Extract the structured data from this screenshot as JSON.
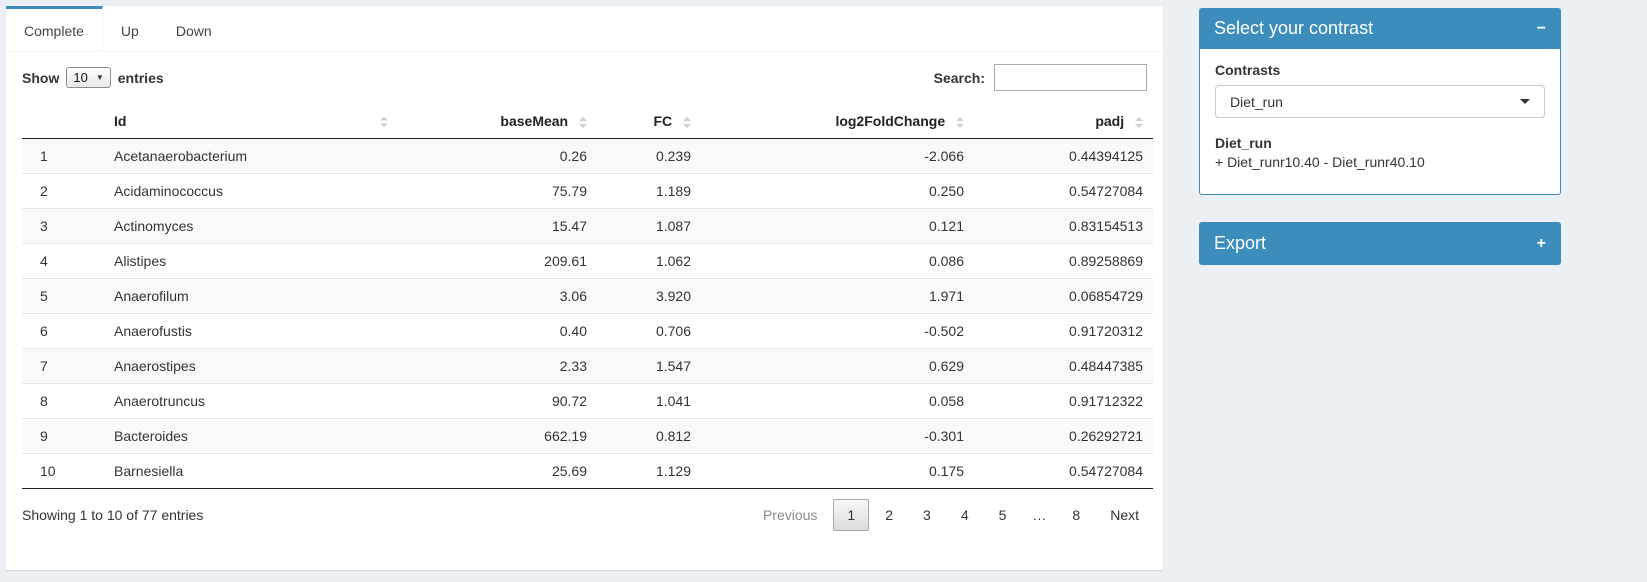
{
  "tabs": [
    {
      "label": "Complete",
      "active": true
    },
    {
      "label": "Up",
      "active": false
    },
    {
      "label": "Down",
      "active": false
    }
  ],
  "controls": {
    "show_label": "Show",
    "entries_value": "10",
    "entries_label": "entries",
    "search_label": "Search:",
    "search_value": ""
  },
  "table": {
    "headers": [
      {
        "label": "",
        "sortable": false
      },
      {
        "label": "Id",
        "sortable": true
      },
      {
        "label": "baseMean",
        "sortable": true
      },
      {
        "label": "FC",
        "sortable": true
      },
      {
        "label": "log2FoldChange",
        "sortable": true
      },
      {
        "label": "padj",
        "sortable": true
      }
    ],
    "rows": [
      [
        "1",
        "Acetanaerobacterium",
        "0.26",
        "0.239",
        "-2.066",
        "0.44394125"
      ],
      [
        "2",
        "Acidaminococcus",
        "75.79",
        "1.189",
        "0.250",
        "0.54727084"
      ],
      [
        "3",
        "Actinomyces",
        "15.47",
        "1.087",
        "0.121",
        "0.83154513"
      ],
      [
        "4",
        "Alistipes",
        "209.61",
        "1.062",
        "0.086",
        "0.89258869"
      ],
      [
        "5",
        "Anaerofilum",
        "3.06",
        "3.920",
        "1.971",
        "0.06854729"
      ],
      [
        "6",
        "Anaerofustis",
        "0.40",
        "0.706",
        "-0.502",
        "0.91720312"
      ],
      [
        "7",
        "Anaerostipes",
        "2.33",
        "1.547",
        "0.629",
        "0.48447385"
      ],
      [
        "8",
        "Anaerotruncus",
        "90.72",
        "1.041",
        "0.058",
        "0.91712322"
      ],
      [
        "9",
        "Bacteroides",
        "662.19",
        "0.812",
        "-0.301",
        "0.26292721"
      ],
      [
        "10",
        "Barnesiella",
        "25.69",
        "1.129",
        "0.175",
        "0.54727084"
      ]
    ],
    "info": "Showing 1 to 10 of 77 entries",
    "pagination": [
      {
        "label": "Previous",
        "type": "disabled"
      },
      {
        "label": "1",
        "type": "current"
      },
      {
        "label": "2",
        "type": "page"
      },
      {
        "label": "3",
        "type": "page"
      },
      {
        "label": "4",
        "type": "page"
      },
      {
        "label": "5",
        "type": "page"
      },
      {
        "label": "…",
        "type": "ellipsis"
      },
      {
        "label": "8",
        "type": "page"
      },
      {
        "label": "Next",
        "type": "page"
      }
    ]
  },
  "contrast_panel": {
    "title": "Select your contrast",
    "collapse_icon": "−",
    "contrasts_label": "Contrasts",
    "selected_contrast": "Diet_run",
    "contrast_name": "Diet_run",
    "contrast_formula": "+ Diet_runr10.40 - Diet_runr40.10"
  },
  "export_panel": {
    "title": "Export",
    "expand_icon": "+"
  },
  "colors": {
    "accent": "#3c8dbc",
    "page_bg": "#ecf0f5",
    "stripe": "#f9f9f9"
  }
}
